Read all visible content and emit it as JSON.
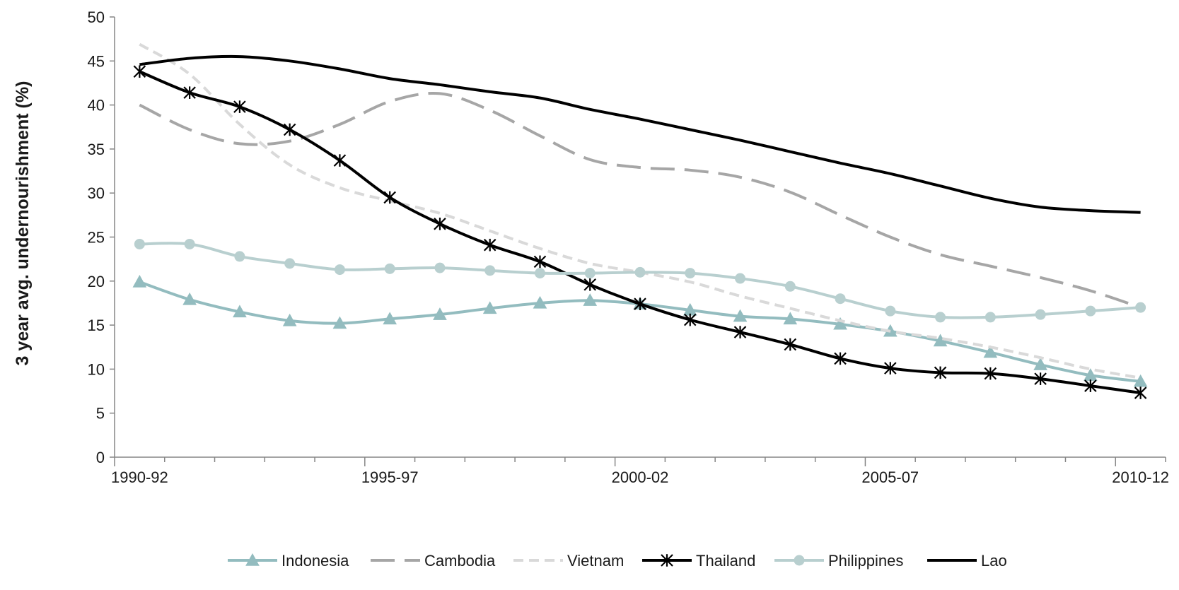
{
  "chart_data": {
    "type": "line",
    "title": "",
    "xlabel": "",
    "ylabel": "3 year avg. undernourishment (%)",
    "ylim": [
      0,
      50
    ],
    "yticks": [
      0,
      5,
      10,
      15,
      20,
      25,
      30,
      35,
      40,
      45,
      50
    ],
    "categories": [
      "1990-92",
      "1991-93",
      "1992-94",
      "1993-95",
      "1994-96",
      "1995-97",
      "1996-98",
      "1997-99",
      "1998-00",
      "1999-01",
      "2000-02",
      "2001-03",
      "2002-04",
      "2003-05",
      "2004-06",
      "2005-07",
      "2006-08",
      "2007-09",
      "2008-10",
      "2009-11",
      "2010-12"
    ],
    "xtick_labels_shown": [
      "1990-92",
      "1995-97",
      "2000-02",
      "2005-07",
      "2010-12"
    ],
    "grid": false,
    "legend_position": "bottom",
    "series": [
      {
        "name": "Indonesia",
        "color": "#93bcbf",
        "marker": "triangle",
        "dash": "solid",
        "values": [
          19.9,
          17.9,
          16.5,
          15.5,
          15.2,
          15.7,
          16.2,
          16.9,
          17.5,
          17.8,
          17.4,
          16.7,
          16.0,
          15.7,
          15.1,
          14.3,
          13.2,
          11.9,
          10.5,
          9.3,
          8.6
        ]
      },
      {
        "name": "Cambodia",
        "color": "#a6a6a6",
        "marker": "none",
        "dash": "longdash",
        "values": [
          40.0,
          37.2,
          35.6,
          35.9,
          37.8,
          40.4,
          41.3,
          39.4,
          36.5,
          33.8,
          32.9,
          32.6,
          31.8,
          30.1,
          27.5,
          25.0,
          23.0,
          21.7,
          20.4,
          18.9,
          17.0
        ]
      },
      {
        "name": "Vietnam",
        "color": "#d9d9d9",
        "marker": "none",
        "dash": "shortdash",
        "values": [
          46.9,
          43.5,
          37.8,
          33.2,
          30.6,
          29.1,
          27.7,
          25.7,
          23.7,
          22.0,
          21.0,
          19.9,
          18.3,
          16.9,
          15.5,
          14.3,
          13.5,
          12.5,
          11.3,
          10.0,
          9.0
        ]
      },
      {
        "name": "Thailand",
        "color": "#000000",
        "marker": "asterisk",
        "dash": "solid",
        "values": [
          43.8,
          41.4,
          39.8,
          37.2,
          33.7,
          29.5,
          26.5,
          24.1,
          22.2,
          19.6,
          17.4,
          15.6,
          14.2,
          12.8,
          11.2,
          10.1,
          9.6,
          9.5,
          8.9,
          8.1,
          7.3
        ]
      },
      {
        "name": "Philippines",
        "color": "#b8cfcf",
        "marker": "circle",
        "dash": "solid",
        "values": [
          24.2,
          24.2,
          22.8,
          22.0,
          21.3,
          21.4,
          21.5,
          21.2,
          20.9,
          20.9,
          21.0,
          20.9,
          20.3,
          19.4,
          18.0,
          16.6,
          15.9,
          15.9,
          16.2,
          16.6,
          17.0
        ]
      },
      {
        "name": "Lao",
        "color": "#000000",
        "marker": "none",
        "dash": "solid",
        "values": [
          44.6,
          45.3,
          45.5,
          45.0,
          44.1,
          43.0,
          42.3,
          41.5,
          40.8,
          39.5,
          38.4,
          37.2,
          36.0,
          34.7,
          33.4,
          32.2,
          30.8,
          29.4,
          28.4,
          28.0,
          27.8
        ]
      }
    ]
  }
}
